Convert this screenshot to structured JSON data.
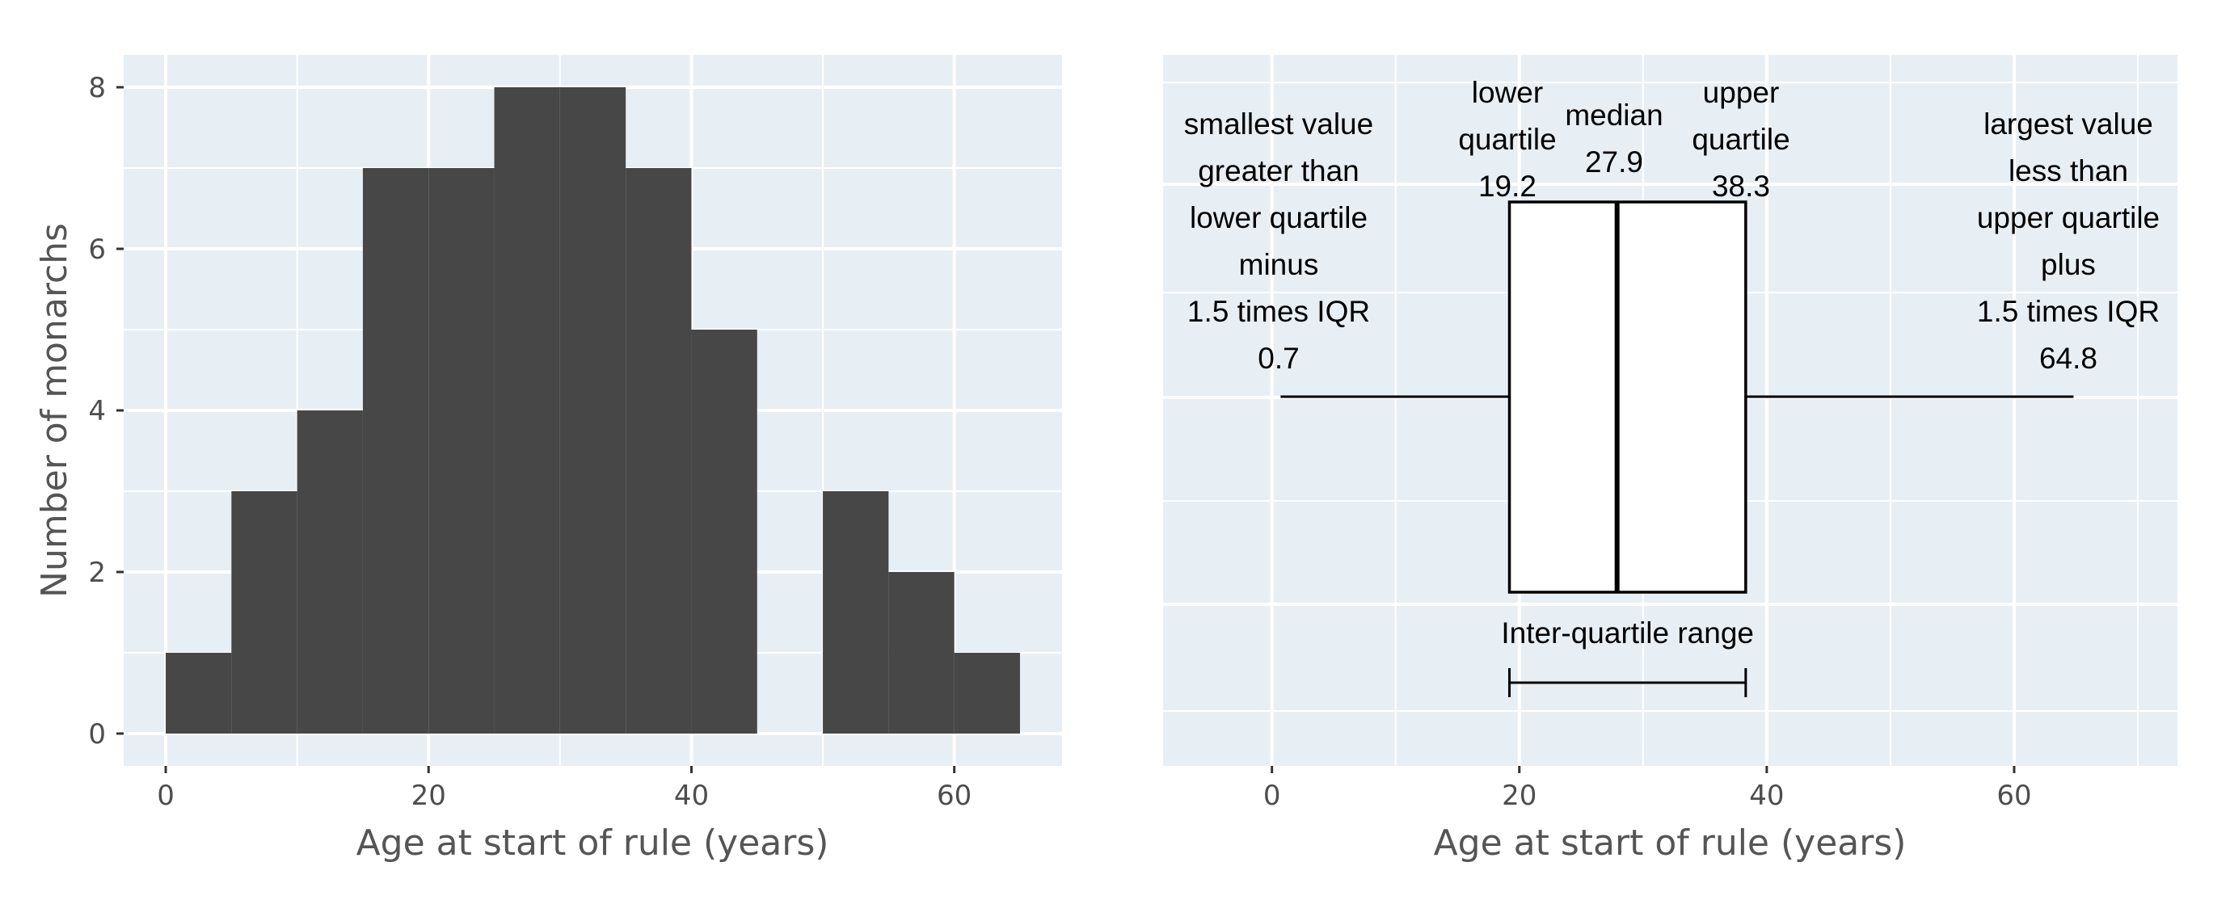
{
  "chart_data": [
    {
      "type": "bar",
      "subtype": "histogram",
      "bin_width": 5,
      "bins": [
        {
          "start": 0,
          "end": 5,
          "count": 1
        },
        {
          "start": 5,
          "end": 10,
          "count": 3
        },
        {
          "start": 10,
          "end": 15,
          "count": 4
        },
        {
          "start": 15,
          "end": 20,
          "count": 7
        },
        {
          "start": 20,
          "end": 25,
          "count": 7
        },
        {
          "start": 25,
          "end": 30,
          "count": 8
        },
        {
          "start": 30,
          "end": 35,
          "count": 8
        },
        {
          "start": 35,
          "end": 40,
          "count": 7
        },
        {
          "start": 40,
          "end": 45,
          "count": 5
        },
        {
          "start": 45,
          "end": 50,
          "count": 0
        },
        {
          "start": 50,
          "end": 55,
          "count": 3
        },
        {
          "start": 55,
          "end": 60,
          "count": 2
        },
        {
          "start": 60,
          "end": 65,
          "count": 1
        }
      ],
      "title": "",
      "xlabel": "Age at start of rule (years)",
      "ylabel": "Number of monarchs",
      "xlim": [
        -3.2,
        68.2
      ],
      "ylim": [
        -0.4,
        8.4
      ],
      "x_ticks": [
        "0",
        "20",
        "40",
        "60"
      ],
      "x_tick_values": [
        0,
        20,
        40,
        60
      ],
      "y_ticks": [
        "0",
        "2",
        "4",
        "6",
        "8"
      ],
      "y_tick_values": [
        0,
        2,
        4,
        6,
        8
      ],
      "grid": true,
      "bar_color": "#474747",
      "panel_background": "#e8eff4"
    },
    {
      "type": "boxplot",
      "orientation": "horizontal",
      "whisker_low": 0.7,
      "lower_quartile": 19.2,
      "median": 27.9,
      "upper_quartile": 38.3,
      "whisker_high": 64.8,
      "xlabel": "Age at start of rule (years)",
      "xlim": [
        -8.8,
        73.2
      ],
      "x_ticks": [
        "0",
        "20",
        "40",
        "60"
      ],
      "x_tick_values": [
        0,
        20,
        40,
        60
      ],
      "grid": true,
      "panel_background": "#e8eff4",
      "annotations": {
        "whisker_low_lines": [
          "smallest value",
          "greater than",
          "lower quartile",
          "minus",
          "1.5 times IQR",
          "0.7"
        ],
        "lower_quartile_lines": [
          "lower",
          "quartile",
          "19.2"
        ],
        "median_lines": [
          "median",
          "27.9"
        ],
        "upper_quartile_lines": [
          "upper",
          "quartile",
          "38.3"
        ],
        "whisker_high_lines": [
          "largest value",
          "less than",
          "upper quartile",
          "plus",
          "1.5 times IQR",
          "64.8"
        ],
        "iqr_label": "Inter-quartile range"
      }
    }
  ]
}
